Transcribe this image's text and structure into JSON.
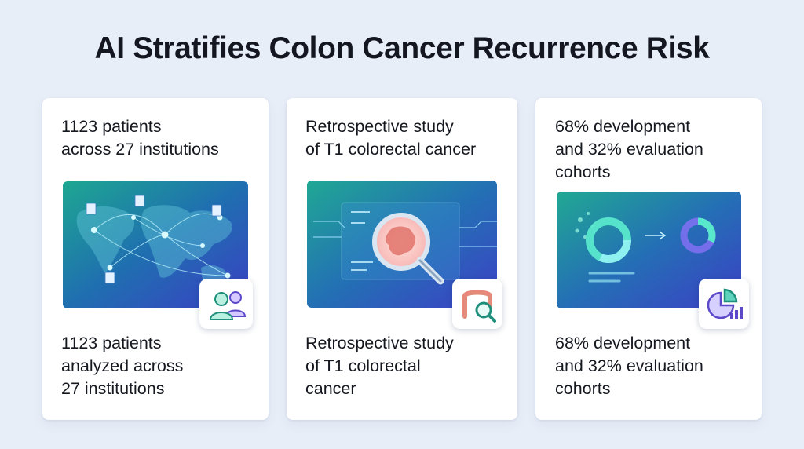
{
  "title": "AI Stratifies Colon Cancer Recurrence Risk",
  "cards": [
    {
      "top_lines": [
        "1123 patients",
        "across 27 institutions"
      ],
      "bottom_lines": [
        "1123 patients",
        "analyzed across",
        "27 institutions"
      ],
      "illustration_icon": "world-map-icon",
      "badge_icon": "people-icon"
    },
    {
      "top_lines": [
        "Retrospective study",
        "of T1 colorectal cancer"
      ],
      "bottom_lines": [
        "Retrospective study",
        "of T1 colorectal",
        "cancer"
      ],
      "illustration_icon": "magnifier-colon-icon",
      "badge_icon": "colon-search-icon"
    },
    {
      "top_lines": [
        "68% development",
        "and 32% evaluation",
        "cohorts"
      ],
      "bottom_lines": [
        "68% development",
        "and 32% evaluation",
        "cohorts"
      ],
      "illustration_icon": "donut-split-icon",
      "badge_icon": "pie-chart-icon"
    }
  ],
  "colors": {
    "background": "#e8eef8",
    "card": "#ffffff",
    "illustration_start": "#1fa393",
    "illustration_end": "#3b3fc2",
    "accent_teal": "#4fe3c6",
    "badge_purple": "#6a55d8"
  }
}
